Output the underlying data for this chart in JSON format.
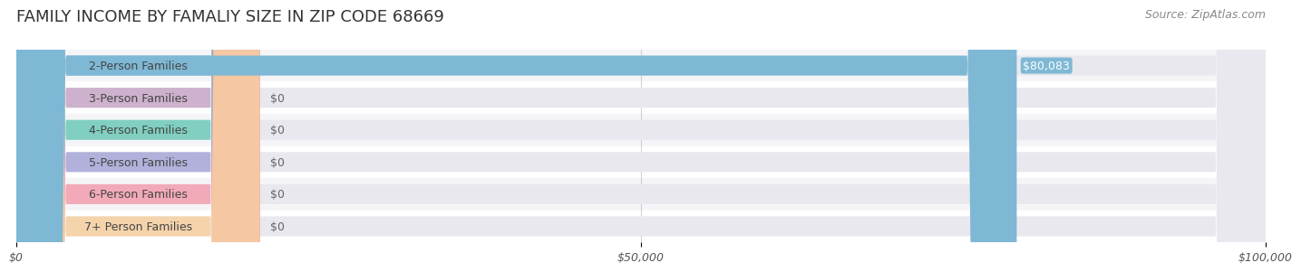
{
  "title": "FAMILY INCOME BY FAMALIY SIZE IN ZIP CODE 68669",
  "source": "Source: ZipAtlas.com",
  "categories": [
    "2-Person Families",
    "3-Person Families",
    "4-Person Families",
    "5-Person Families",
    "6-Person Families",
    "7+ Person Families"
  ],
  "values": [
    80083,
    0,
    0,
    0,
    0,
    0
  ],
  "bar_colors": [
    "#7eb8d4",
    "#c9a8c8",
    "#6ecbb8",
    "#a8a8d8",
    "#f4a0b0",
    "#f8d0a0"
  ],
  "max_value": 100000,
  "xlim": [
    0,
    100000
  ],
  "xticks": [
    0,
    50000,
    100000
  ],
  "xtick_labels": [
    "$0",
    "$50,000",
    "$100,000"
  ],
  "bar_label_color": "#ffffff",
  "bar_label_fontsize": 9,
  "title_fontsize": 13,
  "source_fontsize": 9,
  "label_fontsize": 9,
  "background_color": "#ffffff",
  "bar_bg_color": "#e8e8ee",
  "row_bg_colors": [
    "#f5f5f8",
    "#ffffff"
  ],
  "grid_color": "#d0d0d8",
  "value_label": "$80,083"
}
